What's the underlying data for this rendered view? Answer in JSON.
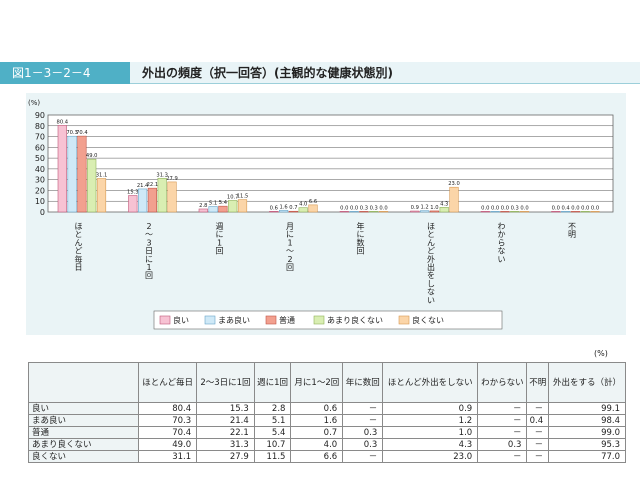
{
  "figure": {
    "label": "図1－3－2－4",
    "title": "外出の頻度（択一回答）(主観的な健康状態別)"
  },
  "colors": {
    "良い": "#f7c2d3",
    "まあ良い": "#cfe9f7",
    "普通": "#f2a08f",
    "あまり良くない": "#d9eeb2",
    "良くない": "#fbd5a8",
    "accent": "#4fb0c6"
  },
  "chart_data": {
    "type": "bar",
    "yunit": "(%)",
    "ylim": [
      0,
      90
    ],
    "yticks": [
      0,
      10,
      20,
      30,
      40,
      50,
      60,
      70,
      80,
      90
    ],
    "grid": true,
    "legend_position": "bottom",
    "categories": [
      "ほとんど毎日",
      "2～3日に1回",
      "週に1回",
      "月に1～2回",
      "年に数回",
      "ほとんど外出をしない",
      "わからない",
      "不明"
    ],
    "series": [
      {
        "name": "良い",
        "values": [
          80.4,
          15.3,
          2.8,
          0.6,
          0.0,
          0.9,
          0.0,
          0.0
        ],
        "labels": [
          "80.4",
          "15.3",
          "2.8",
          "0.6",
          "0.0",
          "0.9",
          "0.0",
          "0.0"
        ]
      },
      {
        "name": "まあ良い",
        "values": [
          70.3,
          21.4,
          5.1,
          1.6,
          0.0,
          1.2,
          0.0,
          0.4
        ],
        "labels": [
          "70.3",
          "21.4",
          "5.1",
          "1.6",
          "0.0",
          "1.2",
          "0.0",
          "0.4"
        ]
      },
      {
        "name": "普通",
        "values": [
          70.4,
          22.1,
          5.4,
          0.7,
          0.3,
          1.0,
          0.0,
          0.0
        ],
        "labels": [
          "70.4",
          "22.1",
          "5.4",
          "0.7",
          "0.3",
          "1.0",
          "0.0",
          "0.0"
        ]
      },
      {
        "name": "あまり良くない",
        "values": [
          49.0,
          31.3,
          10.7,
          4.0,
          0.3,
          4.3,
          0.3,
          0.0
        ],
        "labels": [
          "49.0",
          "31.3",
          "10.7",
          "4.0",
          "0.3",
          "4.3",
          "0.3",
          "0.0"
        ]
      },
      {
        "name": "良くない",
        "values": [
          31.1,
          27.9,
          11.5,
          6.6,
          0.0,
          23.0,
          0.0,
          0.0
        ],
        "labels": [
          "31.1",
          "27.9",
          "11.5",
          "6.6",
          "0.0",
          "23.0",
          "0.0",
          "0.0"
        ]
      }
    ]
  },
  "table": {
    "unit": "(%)",
    "headers": [
      "",
      "ほとんど毎日",
      "2～3日に1回",
      "週に1回",
      "月に1～2回",
      "年に数回",
      "ほとんど外出をしない",
      "わからない",
      "不明",
      "外出をする（計）"
    ],
    "rows": [
      [
        "良い",
        "80.4",
        "15.3",
        "2.8",
        "0.6",
        "－",
        "0.9",
        "－",
        "－",
        "99.1"
      ],
      [
        "まあ良い",
        "70.3",
        "21.4",
        "5.1",
        "1.6",
        "－",
        "1.2",
        "－",
        "0.4",
        "98.4"
      ],
      [
        "普通",
        "70.4",
        "22.1",
        "5.4",
        "0.7",
        "0.3",
        "1.0",
        "－",
        "－",
        "99.0"
      ],
      [
        "あまり良くない",
        "49.0",
        "31.3",
        "10.7",
        "4.0",
        "0.3",
        "4.3",
        "0.3",
        "－",
        "95.3"
      ],
      [
        "良くない",
        "31.1",
        "27.9",
        "11.5",
        "6.6",
        "－",
        "23.0",
        "－",
        "－",
        "77.0"
      ]
    ]
  }
}
